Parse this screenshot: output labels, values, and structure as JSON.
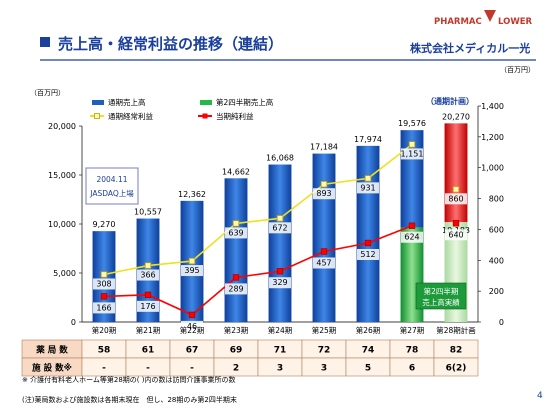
{
  "header": {
    "title": "売上高・経常利益の推移（連結）",
    "logo_text": "PHARMAC",
    "logo_text2": "LOWER",
    "company": "株式会社メディカル一光"
  },
  "colors": {
    "sales_bar": "#1f5fbf",
    "q2_sales_bar": "#22b84a",
    "plan_bar": "#e02020",
    "ordinary_line": "#f0e020",
    "net_line": "#ff0000",
    "q2_line": "#33cc33",
    "title_bar": "#1a3f9c"
  },
  "chart_data": {
    "type": "bar",
    "categories": [
      "第20期",
      "第21期",
      "第22期",
      "第23期",
      "第24期",
      "第25期",
      "第26期",
      "第27期",
      "第28期計画"
    ],
    "units_left": "（百万円）",
    "units_right": "（百万円）",
    "left_axis": {
      "min": 0,
      "max": 20000,
      "ticks": [
        "0",
        "5,000",
        "10,000",
        "15,000",
        "20,000"
      ]
    },
    "right_axis": {
      "min": 0,
      "max": 1400,
      "ticks": [
        "0",
        "200",
        "400",
        "600",
        "800",
        "1,000",
        "1,200",
        "1,400"
      ]
    },
    "series": [
      {
        "name": "通期売上高",
        "axis": "left",
        "values": [
          9270,
          10557,
          12362,
          14662,
          16068,
          17184,
          17974,
          19576,
          20270
        ],
        "labels": [
          "9,270",
          "10,557",
          "12,362",
          "14,662",
          "16,068",
          "17,184",
          "17,974",
          "19,576",
          "20,270"
        ]
      },
      {
        "name": "第2四半期売上高",
        "axis": "left",
        "values": [
          null,
          null,
          null,
          null,
          null,
          null,
          null,
          9621,
          10183
        ],
        "labels": [
          "",
          "",
          "",
          "",
          "",
          "",
          "",
          "9,621",
          "10,183"
        ]
      },
      {
        "name": "通期経常利益",
        "axis": "right",
        "values": [
          308,
          366,
          395,
          639,
          672,
          893,
          931,
          1151,
          860
        ],
        "labels": [
          "308",
          "366",
          "395",
          "639",
          "672",
          "893",
          "931",
          "1,151",
          "860"
        ]
      },
      {
        "name": "当期純利益",
        "axis": "right",
        "values": [
          166,
          176,
          46,
          289,
          329,
          457,
          512,
          624,
          640
        ],
        "labels": [
          "166",
          "176",
          "46",
          "289",
          "329",
          "457",
          "512",
          "624",
          "640"
        ]
      }
    ],
    "annotations": {
      "jasdaq": [
        "2004.11",
        "JASDAQ上場"
      ],
      "plan": "（通期計画）",
      "q2_actual": [
        "第2四半期",
        "売上高実績"
      ]
    }
  },
  "table": {
    "rows": [
      {
        "label": "薬 局 数",
        "values": [
          "58",
          "61",
          "67",
          "69",
          "71",
          "72",
          "74",
          "78",
          "82"
        ]
      },
      {
        "label": "施 設 数※",
        "values": [
          "-",
          "-",
          "-",
          "2",
          "3",
          "3",
          "5",
          "6",
          "6(2)"
        ]
      }
    ]
  },
  "footnotes": [
    "※ 介護付有料老人ホーム等第28期の( )内の数は訪問介護事業所の数",
    "(注)薬局数および施設数は各期末現在　但し、28期のみ第2四半期末"
  ],
  "page_number": "4"
}
